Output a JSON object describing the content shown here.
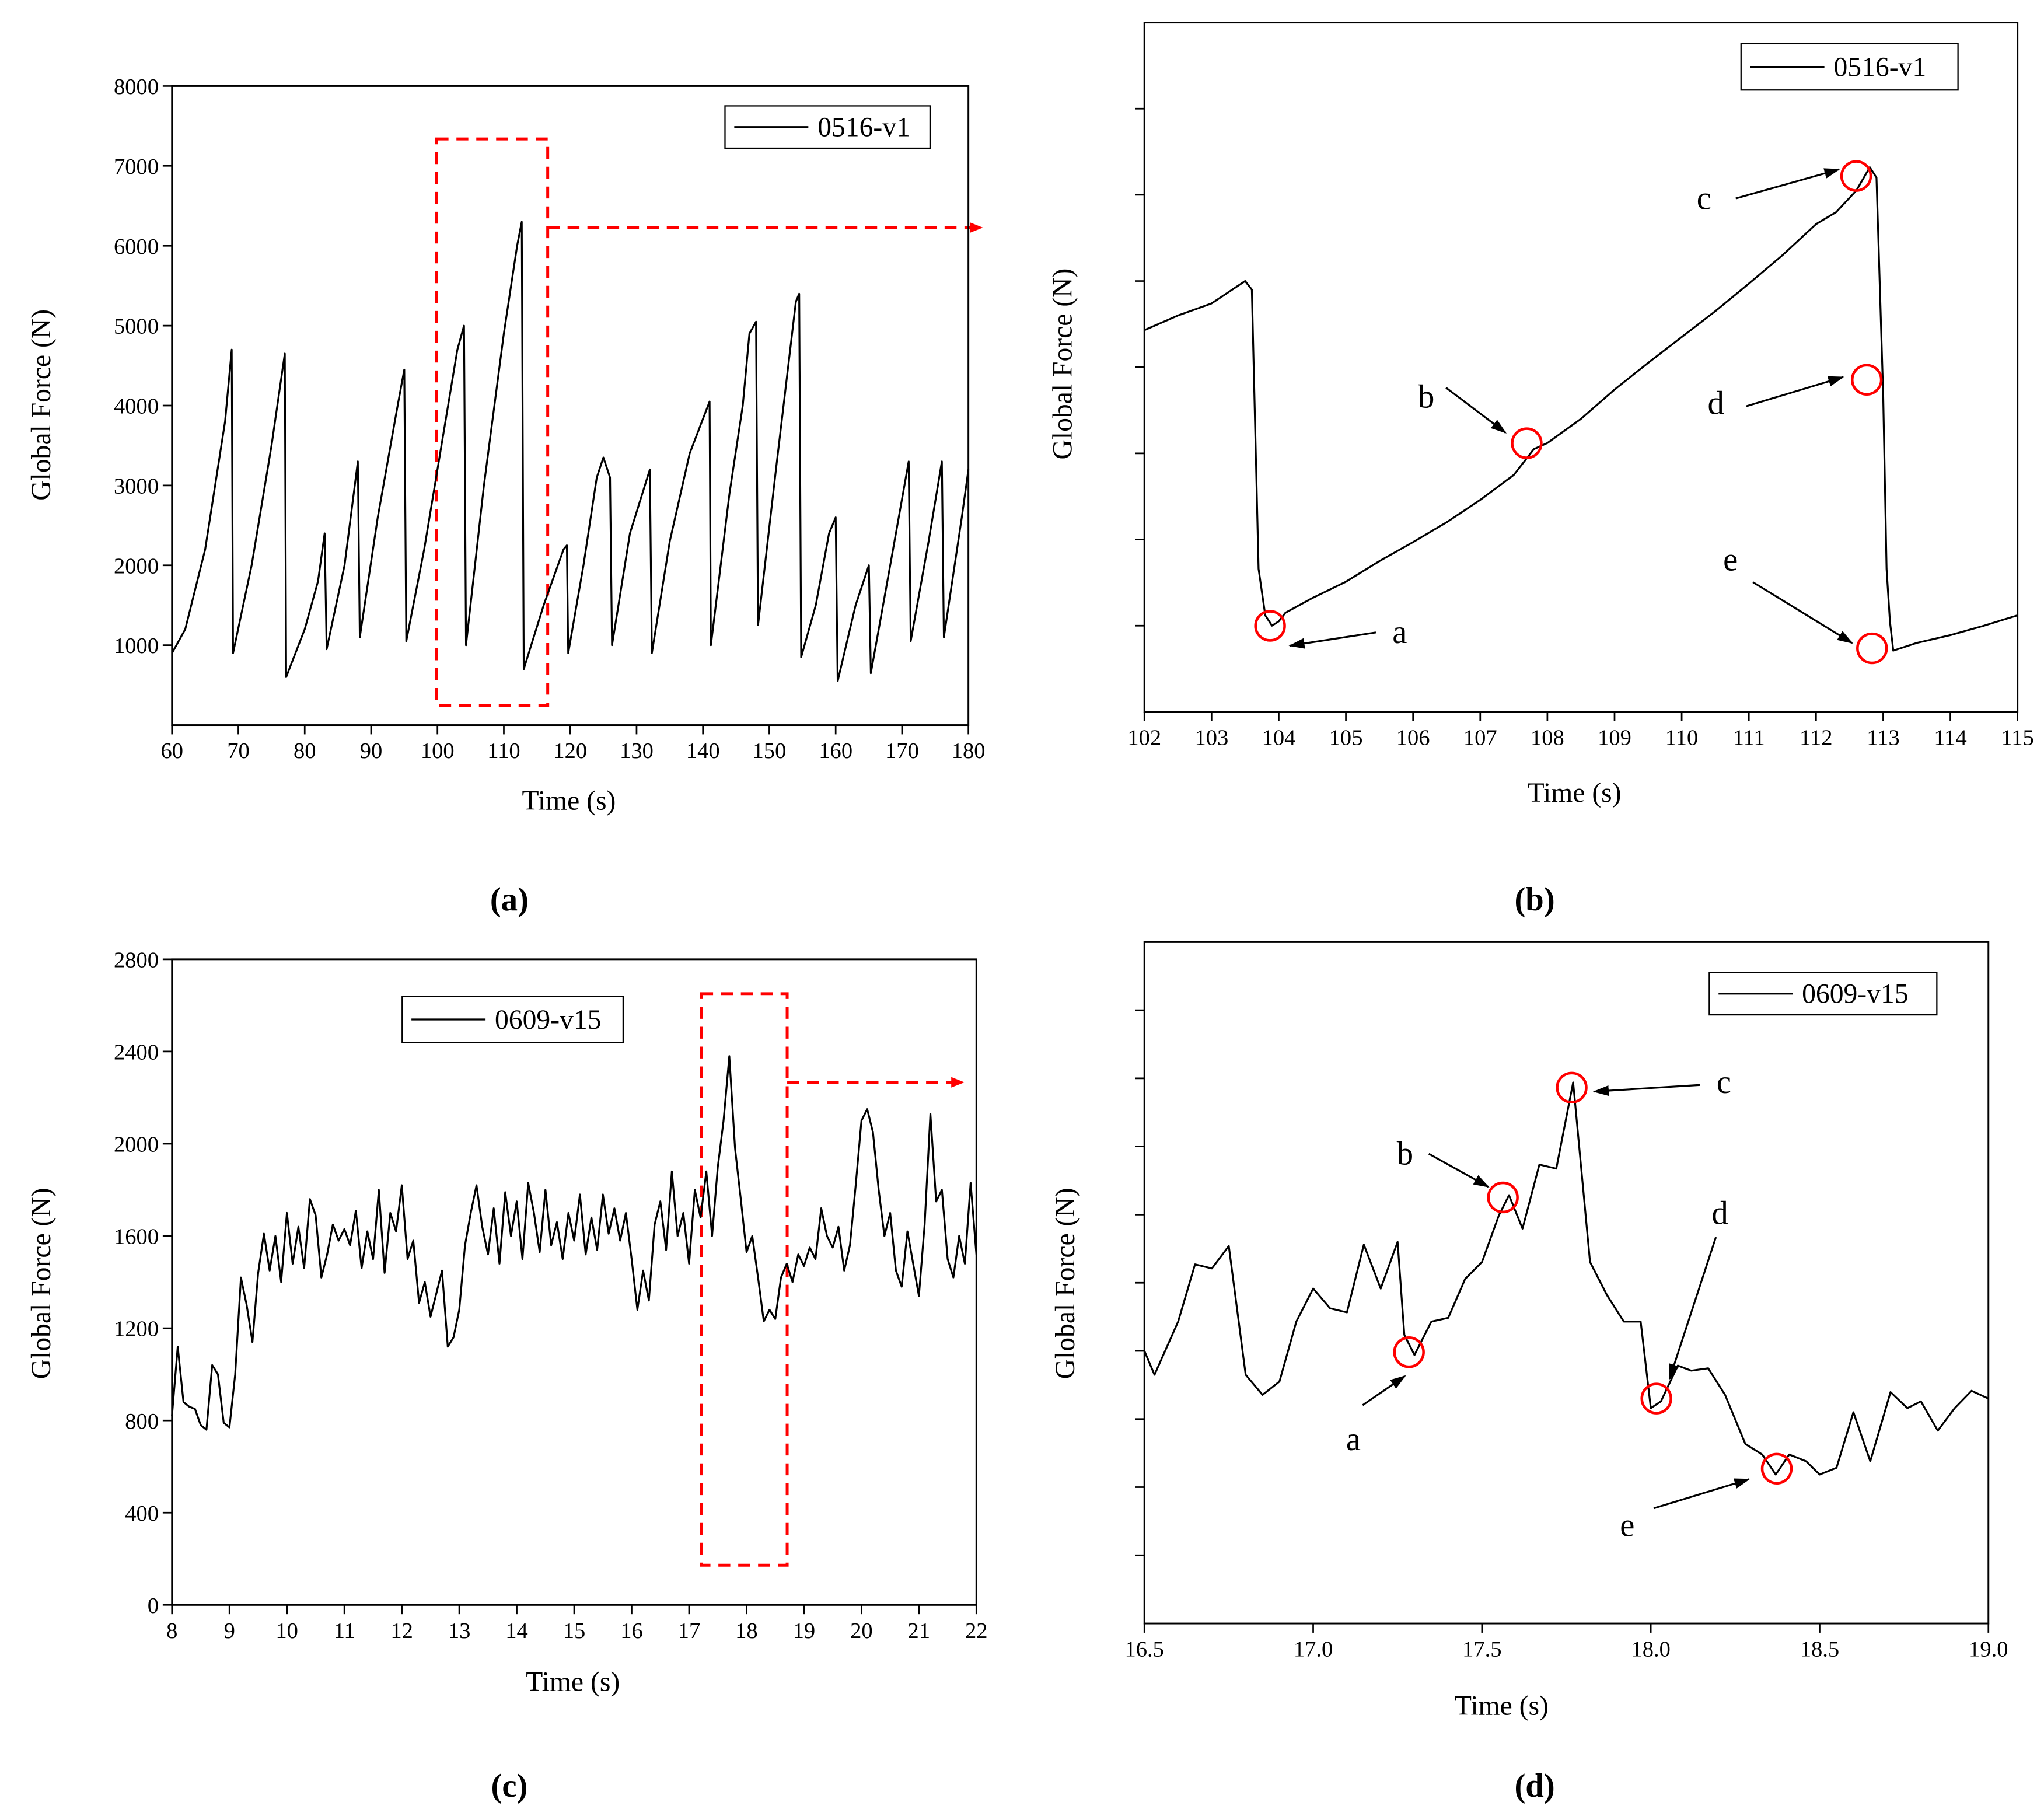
{
  "chart_data": [
    {
      "type": "line",
      "caption": "(a)",
      "xlabel": "Time (s)",
      "ylabel": "Global Force (N)",
      "xlim": [
        60,
        180
      ],
      "xticks": [
        60,
        70,
        80,
        90,
        100,
        110,
        120,
        130,
        140,
        150,
        160,
        170,
        180
      ],
      "ylim": [
        0,
        8000
      ],
      "yticks": [
        1000,
        2000,
        3000,
        4000,
        5000,
        6000,
        7000,
        8000
      ],
      "ytick_labels": true,
      "legend": "upper right",
      "x": [
        60,
        62,
        65,
        68,
        69,
        69.2,
        72,
        75,
        77,
        77.2,
        80,
        82,
        83,
        83.3,
        86,
        88,
        88.3,
        91,
        94,
        95,
        95.3,
        98,
        101,
        103,
        104,
        104.3,
        107,
        110,
        112,
        112.7,
        113,
        116,
        119,
        119.5,
        119.7,
        122,
        124,
        125,
        126,
        126.3,
        129,
        132,
        132.3,
        135,
        138,
        141,
        141.2,
        144,
        146,
        147,
        148,
        148.3,
        151,
        154,
        154.5,
        154.8,
        157,
        159,
        160,
        160.3,
        163,
        165,
        165.3,
        168,
        171,
        171.3,
        174,
        176,
        176.3,
        179,
        180
      ],
      "series": [
        {
          "name": "0516-v1",
          "color": "#000000",
          "values": [
            900,
            1200,
            2200,
            3800,
            4700,
            900,
            2000,
            3500,
            4650,
            600,
            1200,
            1800,
            2400,
            950,
            2000,
            3300,
            1100,
            2600,
            4000,
            4450,
            1050,
            2200,
            3700,
            4700,
            5000,
            1000,
            3000,
            4900,
            6000,
            6300,
            700,
            1500,
            2200,
            2250,
            900,
            2000,
            3100,
            3350,
            3100,
            1000,
            2400,
            3200,
            900,
            2300,
            3400,
            4050,
            1000,
            2900,
            4000,
            4900,
            5050,
            1250,
            3200,
            5300,
            5400,
            850,
            1500,
            2400,
            2600,
            550,
            1500,
            2000,
            650,
            1900,
            3300,
            1050,
            2300,
            3300,
            1100,
            2600,
            3200
          ]
        }
      ]
    },
    {
      "type": "line",
      "caption": "(b)",
      "xlabel": "Time (s)",
      "ylabel": "Global Force (N)",
      "xlim": [
        102,
        115
      ],
      "xticks": [
        102,
        103,
        104,
        105,
        106,
        107,
        108,
        109,
        110,
        111,
        112,
        113,
        114,
        115
      ],
      "ylim": [
        0,
        8000
      ],
      "yticks": [
        1000,
        2000,
        3000,
        4000,
        5000,
        6000,
        7000
      ],
      "ytick_labels": false,
      "legend": "upper right",
      "x": [
        102,
        102.5,
        103,
        103.5,
        103.6,
        103.7,
        103.8,
        103.9,
        104,
        104.1,
        104.5,
        105,
        105.5,
        106,
        106.5,
        107,
        107.5,
        107.8,
        108,
        108.5,
        109,
        109.5,
        110,
        110.5,
        111,
        111.5,
        112,
        112.3,
        112.6,
        112.8,
        112.9,
        113,
        113.05,
        113.1,
        113.15,
        113.5,
        114,
        114.5,
        115
      ],
      "series": [
        {
          "name": "0516-v1",
          "color": "#000000",
          "values": [
            4430,
            4600,
            4740,
            5000,
            4900,
            1660,
            1120,
            1000,
            1050,
            1150,
            1320,
            1510,
            1750,
            1970,
            2200,
            2460,
            2750,
            3050,
            3120,
            3400,
            3740,
            4050,
            4350,
            4650,
            4970,
            5300,
            5660,
            5800,
            6050,
            6320,
            6200,
            3660,
            1660,
            1050,
            710,
            800,
            890,
            1000,
            1120
          ]
        }
      ],
      "annotations": [
        "a",
        "b",
        "c",
        "d",
        "e"
      ]
    },
    {
      "type": "line",
      "caption": "(c)",
      "xlabel": "Time (s)",
      "ylabel": "Global Force (N)",
      "xlim": [
        8,
        22
      ],
      "xticks": [
        8,
        9,
        10,
        11,
        12,
        13,
        14,
        15,
        16,
        17,
        18,
        19,
        20,
        21,
        22
      ],
      "ylim": [
        0,
        2800
      ],
      "yticks": [
        0,
        400,
        800,
        1200,
        1600,
        2000,
        2400,
        2800
      ],
      "ytick_labels": true,
      "legend": "upper left",
      "x": [
        8,
        8.1,
        8.2,
        8.3,
        8.4,
        8.5,
        8.6,
        8.7,
        8.8,
        8.9,
        9,
        9.1,
        9.2,
        9.3,
        9.4,
        9.5,
        9.6,
        9.7,
        9.8,
        9.9,
        10,
        10.1,
        10.2,
        10.3,
        10.4,
        10.5,
        10.6,
        10.7,
        10.8,
        10.9,
        11,
        11.1,
        11.2,
        11.3,
        11.4,
        11.5,
        11.6,
        11.7,
        11.8,
        11.9,
        12,
        12.1,
        12.2,
        12.3,
        12.4,
        12.5,
        12.6,
        12.7,
        12.8,
        12.9,
        13,
        13.1,
        13.2,
        13.3,
        13.4,
        13.5,
        13.6,
        13.7,
        13.8,
        13.9,
        14,
        14.1,
        14.2,
        14.3,
        14.4,
        14.5,
        14.6,
        14.7,
        14.8,
        14.9,
        15,
        15.1,
        15.2,
        15.3,
        15.4,
        15.5,
        15.6,
        15.7,
        15.8,
        15.9,
        16,
        16.1,
        16.2,
        16.3,
        16.4,
        16.5,
        16.6,
        16.7,
        16.8,
        16.9,
        17,
        17.1,
        17.2,
        17.3,
        17.4,
        17.5,
        17.6,
        17.7,
        17.8,
        17.9,
        18,
        18.1,
        18.2,
        18.3,
        18.4,
        18.5,
        18.6,
        18.7,
        18.8,
        18.9,
        19,
        19.1,
        19.2,
        19.3,
        19.4,
        19.5,
        19.6,
        19.7,
        19.8,
        19.9,
        20,
        20.1,
        20.2,
        20.3,
        20.4,
        20.5,
        20.6,
        20.7,
        20.8,
        20.9,
        21,
        21.1,
        21.2,
        21.3,
        21.4,
        21.5,
        21.6,
        21.7,
        21.8,
        21.9,
        22
      ],
      "series": [
        {
          "name": "0609-v15",
          "color": "#000000",
          "values": [
            820,
            1120,
            880,
            860,
            850,
            780,
            760,
            1040,
            1000,
            790,
            770,
            1000,
            1420,
            1300,
            1140,
            1440,
            1610,
            1450,
            1600,
            1400,
            1700,
            1480,
            1640,
            1460,
            1760,
            1690,
            1420,
            1520,
            1650,
            1580,
            1630,
            1560,
            1710,
            1460,
            1620,
            1500,
            1800,
            1440,
            1700,
            1620,
            1820,
            1500,
            1580,
            1310,
            1400,
            1250,
            1350,
            1450,
            1120,
            1160,
            1280,
            1560,
            1700,
            1820,
            1640,
            1520,
            1720,
            1480,
            1790,
            1600,
            1750,
            1500,
            1830,
            1700,
            1530,
            1800,
            1560,
            1660,
            1500,
            1700,
            1580,
            1780,
            1520,
            1680,
            1540,
            1780,
            1610,
            1720,
            1580,
            1700,
            1500,
            1280,
            1450,
            1320,
            1650,
            1750,
            1540,
            1880,
            1600,
            1700,
            1480,
            1800,
            1680,
            1880,
            1600,
            1900,
            2100,
            2380,
            1980,
            1760,
            1530,
            1600,
            1420,
            1230,
            1280,
            1240,
            1420,
            1480,
            1400,
            1520,
            1470,
            1550,
            1500,
            1720,
            1600,
            1550,
            1640,
            1450,
            1560,
            1820,
            2100,
            2150,
            2050,
            1800,
            1600,
            1700,
            1450,
            1380,
            1620,
            1480,
            1340,
            1650,
            2130,
            1750,
            1800,
            1500,
            1420,
            1600,
            1480,
            1830,
            1520
          ]
        }
      ]
    },
    {
      "type": "line",
      "caption": "(d)",
      "xlabel": "Time (s)",
      "ylabel": "Global Force (N)",
      "xlim": [
        16.5,
        19
      ],
      "xticks": [
        16.5,
        {
          "value": 17,
          "label": "17.0"
        },
        17.5,
        {
          "value": 18,
          "label": "18.0"
        },
        18.5,
        {
          "value": 19,
          "label": "19.0"
        }
      ],
      "ylim": [
        800,
        2800
      ],
      "yticks": [
        1000,
        1200,
        1400,
        1600,
        1800,
        2000,
        2200,
        2400,
        2600
      ],
      "ytick_labels": false,
      "legend": "upper right",
      "x": [
        16.5,
        16.53,
        16.6,
        16.65,
        16.7,
        16.75,
        16.8,
        16.85,
        16.9,
        16.95,
        17,
        17.05,
        17.1,
        17.15,
        17.2,
        17.25,
        17.27,
        17.3,
        17.35,
        17.4,
        17.45,
        17.5,
        17.55,
        17.58,
        17.62,
        17.67,
        17.72,
        17.77,
        17.82,
        17.87,
        17.92,
        17.97,
        18,
        18.03,
        18.08,
        18.12,
        18.17,
        18.22,
        18.28,
        18.33,
        18.37,
        18.41,
        18.46,
        18.5,
        18.55,
        18.6,
        18.65,
        18.71,
        18.76,
        18.8,
        18.85,
        18.9,
        18.95,
        19
      ],
      "series": [
        {
          "name": "0609-v15",
          "color": "#000000",
          "values": [
            1600,
            1530,
            1686,
            1854,
            1842,
            1908,
            1530,
            1471,
            1510,
            1686,
            1783,
            1725,
            1713,
            1912,
            1783,
            1920,
            1647,
            1588,
            1686,
            1697,
            1811,
            1861,
            1998,
            2057,
            1959,
            2147,
            2135,
            2388,
            1861,
            1764,
            1686,
            1686,
            1432,
            1452,
            1557,
            1542,
            1549,
            1471,
            1327,
            1296,
            1237,
            1296,
            1276,
            1237,
            1257,
            1420,
            1276,
            1479,
            1432,
            1452,
            1366,
            1432,
            1483,
            1460
          ]
        }
      ],
      "annotations": [
        "a",
        "b",
        "c",
        "d",
        "e"
      ]
    }
  ]
}
